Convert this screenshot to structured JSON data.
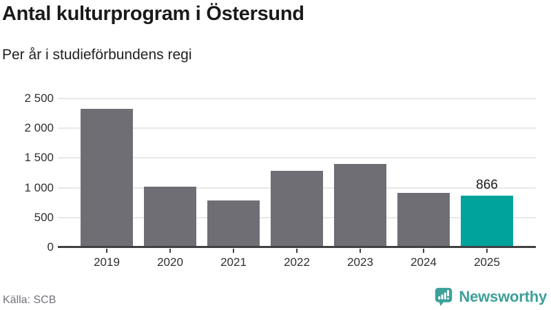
{
  "header": {
    "title": "Antal kulturprogram i Östersund",
    "subtitle": "Per år i studieförbundens regi"
  },
  "chart_data": {
    "type": "bar",
    "title": "Antal kulturprogram i Östersund",
    "subtitle": "Per år i studieförbundens regi",
    "categories": [
      "2019",
      "2020",
      "2021",
      "2022",
      "2023",
      "2024",
      "2025"
    ],
    "values": [
      2330,
      1015,
      785,
      1290,
      1405,
      920,
      866
    ],
    "bar_labels": [
      "",
      "",
      "",
      "",
      "",
      "",
      "866"
    ],
    "highlight_index": 6,
    "xlabel": "",
    "ylabel": "",
    "ylim": [
      0,
      2500
    ],
    "yticks": [
      0,
      500,
      1000,
      1500,
      2000,
      2500
    ],
    "ytick_labels": [
      "0",
      "500",
      "1 000",
      "1 500",
      "2 000",
      "2 500"
    ],
    "grid": true,
    "legend": false
  },
  "footer": {
    "source": "Källa: SCB",
    "brand": "Newsworthy"
  },
  "colors": {
    "bar": "#6e6e74",
    "highlight": "#00a39b",
    "grid": "#e8e8e8",
    "axis": "#404040",
    "tick_text": "#2e2e2e",
    "source_text": "#71717b",
    "brand": "#3da099"
  }
}
